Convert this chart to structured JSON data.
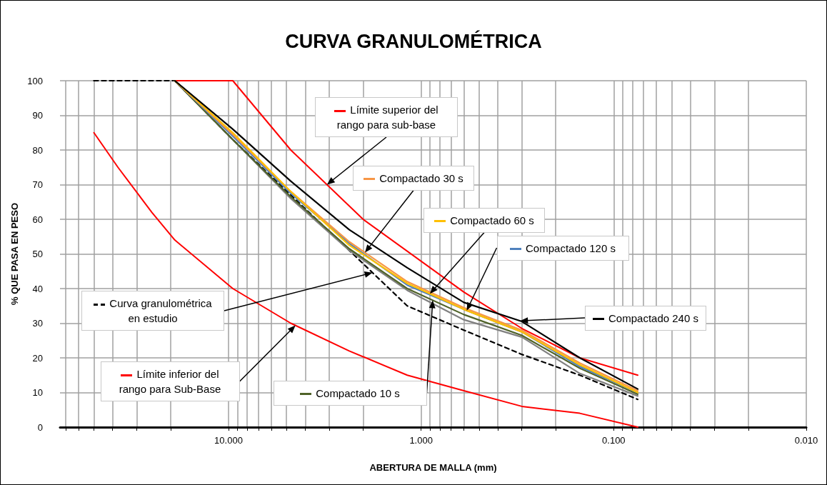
{
  "chart_data": {
    "type": "line",
    "title": "CURVA GRANULOMÉTRICA",
    "xlabel": "ABERTURA DE MALLA (mm)",
    "ylabel": "% QUE PASA EN PESO",
    "log": "x",
    "grid": true,
    "legend": "center",
    "marker": "none",
    "xlim": [
      75,
      0.01
    ],
    "ylim": [
      0,
      100
    ],
    "yticks": [
      0,
      10,
      20,
      30,
      40,
      50,
      60,
      70,
      80,
      90,
      100
    ],
    "xticks": [
      {
        "value": 70,
        "label": null
      },
      {
        "value": 60,
        "label": null
      },
      {
        "value": 50,
        "label": null
      },
      {
        "value": 40,
        "label": null
      },
      {
        "value": 30,
        "label": null
      },
      {
        "value": 20,
        "label": null
      },
      {
        "value": 10,
        "label": "10.000"
      },
      {
        "value": 9,
        "label": null
      },
      {
        "value": 8,
        "label": null
      },
      {
        "value": 7,
        "label": null
      },
      {
        "value": 6,
        "label": null
      },
      {
        "value": 5,
        "label": null
      },
      {
        "value": 4,
        "label": null
      },
      {
        "value": 3,
        "label": null
      },
      {
        "value": 2,
        "label": null
      },
      {
        "value": 1,
        "label": "1.000"
      },
      {
        "value": 0.9,
        "label": null
      },
      {
        "value": 0.8,
        "label": null
      },
      {
        "value": 0.7,
        "label": null
      },
      {
        "value": 0.6,
        "label": null
      },
      {
        "value": 0.5,
        "label": null
      },
      {
        "value": 0.4,
        "label": null
      },
      {
        "value": 0.3,
        "label": null
      },
      {
        "value": 0.2,
        "label": null
      },
      {
        "value": 0.1,
        "label": "0.100"
      },
      {
        "value": 0.09,
        "label": null
      },
      {
        "value": 0.08,
        "label": null
      },
      {
        "value": 0.07,
        "label": null
      },
      {
        "value": 0.06,
        "label": null
      },
      {
        "value": 0.05,
        "label": null
      },
      {
        "value": 0.04,
        "label": null
      },
      {
        "value": 0.03,
        "label": null
      },
      {
        "value": 0.02,
        "label": null
      },
      {
        "value": 0.01,
        "label": "0.010"
      }
    ],
    "series": [
      {
        "name": "Límite superior  del rango para sub-base",
        "color": "#ff0000",
        "x": [
          19,
          9.5,
          4.75,
          2.0,
          0.6,
          0.3,
          0.15,
          0.075
        ],
        "values": [
          100,
          100,
          80,
          60,
          39,
          28.5,
          20,
          15
        ]
      },
      {
        "name": "Límite inferior del rango para Sub-Base",
        "color": "#ff0000",
        "x": [
          50,
          37.5,
          25,
          19,
          9.5,
          4.75,
          2.36,
          1.18,
          0.6,
          0.3,
          0.15,
          0.075
        ],
        "values": [
          85,
          75,
          62,
          54,
          40,
          30,
          22,
          15,
          10.5,
          6,
          4,
          0
        ]
      },
      {
        "name": "Curva granulométrica en estudio",
        "color": "#000000",
        "line_style": "dashed",
        "x": [
          50,
          37.5,
          25,
          19,
          9.5,
          4.75,
          2.36,
          1.18,
          0.6,
          0.3,
          0.15,
          0.075
        ],
        "values": [
          100,
          100,
          100,
          100,
          83,
          67,
          51,
          35,
          28,
          21,
          15,
          8
        ]
      },
      {
        "color": "#808080",
        "x": [
          19,
          9.5,
          4.75,
          2.36,
          1.18,
          0.6,
          0.3,
          0.15,
          0.075
        ],
        "values": [
          100,
          83,
          66,
          51,
          39.5,
          31,
          26,
          15.5,
          9
        ]
      },
      {
        "name": "Compactado 10 s",
        "color": "#4f6228",
        "x": [
          19,
          9.5,
          4.75,
          2.36,
          1.18,
          0.6,
          0.3,
          0.15,
          0.075
        ],
        "values": [
          100,
          83,
          66.5,
          51.5,
          40,
          32.5,
          26.5,
          17,
          9.5
        ]
      },
      {
        "name": "Compactado 120 s",
        "color": "#4f81bd",
        "x": [
          19,
          9.5,
          4.75,
          2.36,
          1.18,
          0.6,
          0.3,
          0.15,
          0.075
        ],
        "values": [
          100,
          84,
          67.5,
          53,
          41,
          34,
          27.5,
          17.5,
          10
        ]
      },
      {
        "name": "Compactado 30 s",
        "color": "#f79646",
        "x": [
          19,
          9.5,
          4.75,
          2.36,
          1.18,
          0.6,
          0.3,
          0.15,
          0.075
        ],
        "values": [
          100,
          84.5,
          68,
          53.5,
          42,
          34.5,
          28,
          18.5,
          10.5
        ]
      },
      {
        "name": "Compactado 60 s",
        "color": "#ffc000",
        "x": [
          19,
          9.5,
          4.75,
          2.36,
          1.18,
          0.6,
          0.3,
          0.15,
          0.075
        ],
        "values": [
          100,
          85,
          68,
          52.5,
          41.5,
          34,
          27.5,
          18,
          10
        ]
      },
      {
        "name": "Compactado 240 s",
        "color": "#000000",
        "x": [
          19,
          9.5,
          4.75,
          2.36,
          1.18,
          0.6,
          0.3,
          0.15,
          0.075
        ],
        "values": [
          100,
          86,
          71,
          57,
          46,
          36,
          30.5,
          20,
          11
        ]
      }
    ]
  }
}
